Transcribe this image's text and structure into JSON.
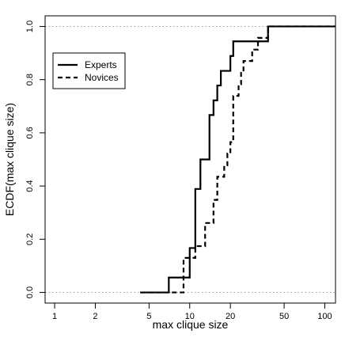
{
  "chart_data": {
    "type": "line",
    "subtype": "ecdf-step",
    "xlabel": "max clique size",
    "ylabel": "ECDF(max clique size)",
    "x_scale": "log",
    "xlim": [
      0.85,
      120
    ],
    "ylim": [
      -0.04,
      1.04
    ],
    "x_ticks": [
      1,
      2,
      5,
      10,
      20,
      50,
      100
    ],
    "x_tick_labels": [
      "1",
      "2",
      "5",
      "10",
      "20",
      "50",
      "100"
    ],
    "y_ticks": [
      0.0,
      0.2,
      0.4,
      0.6,
      0.8,
      1.0
    ],
    "y_tick_labels": [
      "0.0",
      "0.2",
      "0.4",
      "0.6",
      "0.8",
      "1.0"
    ],
    "reference_lines": [
      0,
      1
    ],
    "legend_position": "upper-left",
    "series": [
      {
        "name": "Experts",
        "line_style": "solid",
        "color": "#000000",
        "x_start": 4.3,
        "steps": [
          [
            7,
            0.056
          ],
          [
            10,
            0.167
          ],
          [
            11,
            0.389
          ],
          [
            12,
            0.5
          ],
          [
            14,
            0.667
          ],
          [
            15,
            0.722
          ],
          [
            16,
            0.778
          ],
          [
            17,
            0.833
          ],
          [
            20,
            0.889
          ],
          [
            21,
            0.944
          ],
          [
            38,
            1.0
          ]
        ],
        "x_end": 120
      },
      {
        "name": "Novices",
        "line_style": "dashed",
        "color": "#000000",
        "x_start": 4.3,
        "steps": [
          [
            9,
            0.13
          ],
          [
            11,
            0.174
          ],
          [
            13,
            0.261
          ],
          [
            15,
            0.348
          ],
          [
            16,
            0.435
          ],
          [
            18,
            0.478
          ],
          [
            19,
            0.522
          ],
          [
            20,
            0.565
          ],
          [
            21,
            0.739
          ],
          [
            23,
            0.783
          ],
          [
            24,
            0.826
          ],
          [
            25,
            0.87
          ],
          [
            29,
            0.913
          ],
          [
            32,
            0.957
          ],
          [
            38,
            1.0
          ]
        ],
        "x_end": 120
      }
    ]
  }
}
